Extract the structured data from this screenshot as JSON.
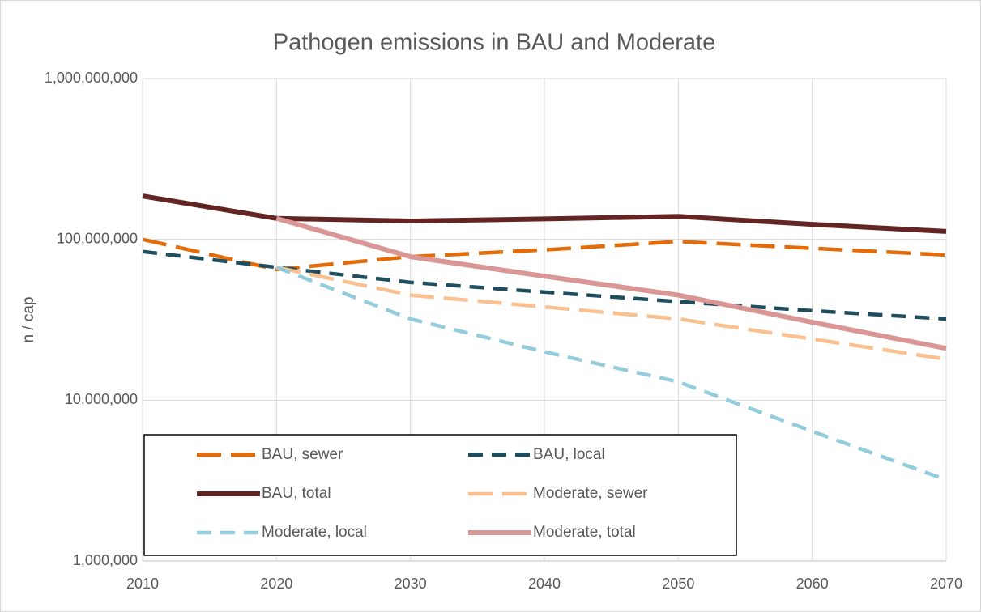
{
  "chart_data": {
    "type": "line",
    "title": "Pathogen emissions in BAU and Moderate",
    "y_label": "n / cap",
    "x": [
      2010,
      2020,
      2030,
      2040,
      2050,
      2060,
      2070
    ],
    "xlim": [
      2010,
      2070
    ],
    "xticks": [
      2010,
      2020,
      2030,
      2040,
      2050,
      2060,
      2070
    ],
    "ylim": [
      1000000,
      1000000000
    ],
    "y_scale": "log",
    "yticks": [
      {
        "value": 1000000,
        "label": "1,000,000"
      },
      {
        "value": 10000000,
        "label": "10,000,000"
      },
      {
        "value": 100000000,
        "label": "100,000,000"
      },
      {
        "value": 1000000000,
        "label": "1,000,000,000"
      }
    ],
    "grid": true,
    "legend": "bottom-left",
    "series": [
      {
        "name": "BAU, sewer",
        "color": "#e36c09",
        "linestyle": "longdash",
        "values": [
          100000000,
          65000000,
          78000000,
          86000000,
          97000000,
          88000000,
          80000000
        ]
      },
      {
        "name": "BAU, local",
        "color": "#1f4e5f",
        "linestyle": "dash",
        "values": [
          84000000,
          67000000,
          54000000,
          47000000,
          41000000,
          36000000,
          32000000
        ]
      },
      {
        "name": "BAU, total",
        "color": "#632523",
        "linestyle": "solid",
        "values": [
          186000000,
          135000000,
          130000000,
          134000000,
          139000000,
          124000000,
          112000000
        ]
      },
      {
        "name": "Moderate, sewer",
        "color": "#fac090",
        "linestyle": "longdash",
        "values": [
          null,
          67000000,
          45000000,
          38000000,
          32000000,
          24000000,
          18000000
        ]
      },
      {
        "name": "Moderate, local",
        "color": "#93cddd",
        "linestyle": "dash",
        "values": [
          null,
          67000000,
          32000000,
          20000000,
          13000000,
          6400000,
          3200000
        ]
      },
      {
        "name": "Moderate, total",
        "color": "#d99694",
        "linestyle": "solid",
        "values": [
          null,
          135000000,
          78000000,
          59000000,
          45000000,
          30500000,
          21000000
        ]
      }
    ]
  }
}
